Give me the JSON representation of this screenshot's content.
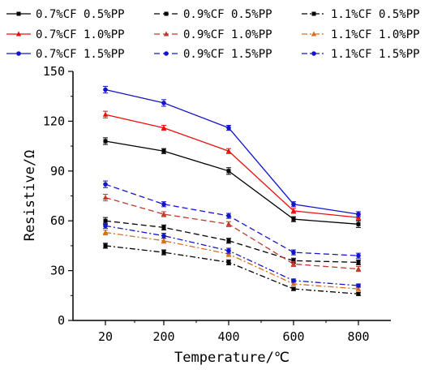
{
  "chart_data": {
    "type": "line",
    "xlabel": "Temperature/℃",
    "ylabel": "Resistive/Ω",
    "x": [
      20,
      200,
      400,
      600,
      800
    ],
    "xticks": [
      "20",
      "200",
      "400",
      "600",
      "800"
    ],
    "xlim": [
      -80,
      900
    ],
    "yticks": [
      "0",
      "30",
      "60",
      "90",
      "120",
      "150"
    ],
    "ylim": [
      0,
      150
    ],
    "legend_placement": "top, 3 columns",
    "series": [
      {
        "name": "0.7%CF 0.5%PP",
        "color": "#000000",
        "dash": "solid",
        "marker": "square",
        "values": [
          108,
          102,
          90,
          61,
          58
        ],
        "error": [
          2,
          1.5,
          2,
          1.5,
          2
        ]
      },
      {
        "name": "0.9%CF 0.5%PP",
        "color": "#000000",
        "dash": "dash",
        "marker": "square",
        "values": [
          60,
          56,
          48,
          36,
          35
        ],
        "error": [
          2,
          1.5,
          1.5,
          1.5,
          1.5
        ]
      },
      {
        "name": "1.1%CF 0.5%PP",
        "color": "#000000",
        "dash": "dashdot",
        "marker": "square",
        "values": [
          45,
          41,
          35,
          19,
          16
        ],
        "error": [
          1.5,
          1.5,
          1.5,
          1,
          1
        ]
      },
      {
        "name": "0.7%CF 1.0%PP",
        "color": "#e8100c",
        "dash": "solid",
        "marker": "triangle",
        "values": [
          124,
          116,
          102,
          66,
          62
        ],
        "error": [
          2,
          1.5,
          1.5,
          1.5,
          1.5
        ]
      },
      {
        "name": "0.9%CF 1.0%PP",
        "color": "#c0392b",
        "dash": "dash",
        "marker": "triangle",
        "values": [
          74,
          64,
          58,
          34,
          31
        ],
        "error": [
          2,
          1.5,
          1.5,
          1.5,
          1.5
        ]
      },
      {
        "name": "1.1%CF 1.0%PP",
        "color": "#d96c1a",
        "dash": "dashdot",
        "marker": "triangle",
        "values": [
          53,
          48,
          40,
          22,
          19
        ],
        "error": [
          1.5,
          1.5,
          1.5,
          1,
          1
        ]
      },
      {
        "name": "0.7%CF 1.5%PP",
        "color": "#1414c8",
        "dash": "solid",
        "marker": "circle",
        "values": [
          139,
          131,
          116,
          70,
          64
        ],
        "error": [
          2,
          2,
          1.5,
          1.5,
          1.5
        ]
      },
      {
        "name": "0.9%CF 1.5%PP",
        "color": "#1414c8",
        "dash": "dash",
        "marker": "circle",
        "values": [
          82,
          70,
          63,
          41,
          39
        ],
        "error": [
          2,
          1.5,
          1.5,
          1.5,
          1.5
        ]
      },
      {
        "name": "1.1%CF 1.5%PP",
        "color": "#1414c8",
        "dash": "dashdot",
        "marker": "circle",
        "values": [
          57,
          51,
          42,
          24,
          21
        ],
        "error": [
          1.5,
          1.5,
          1.5,
          1,
          1
        ]
      }
    ],
    "legend_order": [
      0,
      1,
      2,
      3,
      4,
      5,
      6,
      7,
      8
    ]
  }
}
